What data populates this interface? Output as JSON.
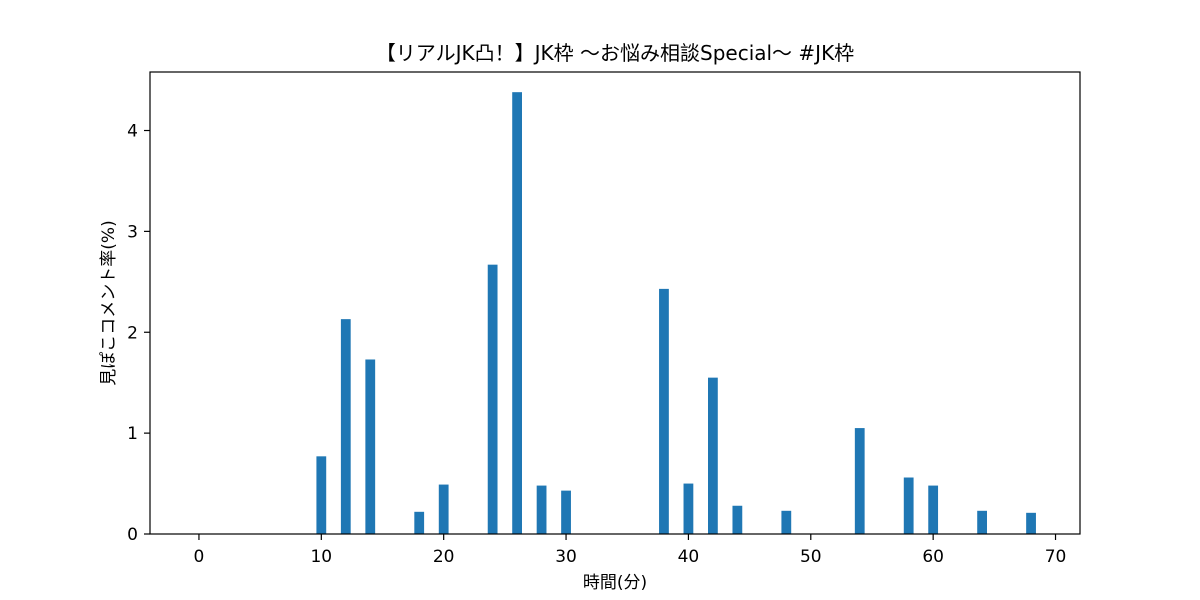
{
  "chart_data": {
    "type": "bar",
    "title": "【リアルJK凸！】JK枠 〜お悩み相談Special〜 #JK枠",
    "xlabel": "時間(分)",
    "ylabel": "見ぽこコメント率(%)",
    "xlim": [
      -4,
      72
    ],
    "ylim": [
      0,
      4.58
    ],
    "xticks": [
      0,
      10,
      20,
      30,
      40,
      50,
      60,
      70
    ],
    "yticks": [
      0,
      1,
      2,
      3,
      4
    ],
    "bar_width_units": 0.8,
    "bar_color": "#1f77b4",
    "grid": false,
    "legend": "none",
    "x": [
      10,
      12,
      14,
      18,
      20,
      24,
      26,
      28,
      30,
      38,
      40,
      42,
      44,
      48,
      54,
      58,
      60,
      64,
      68
    ],
    "values": [
      0.77,
      2.13,
      1.73,
      0.22,
      0.49,
      2.67,
      4.38,
      0.48,
      0.43,
      2.43,
      0.5,
      1.55,
      0.28,
      0.23,
      1.05,
      0.56,
      0.48,
      0.23,
      0.21
    ]
  }
}
